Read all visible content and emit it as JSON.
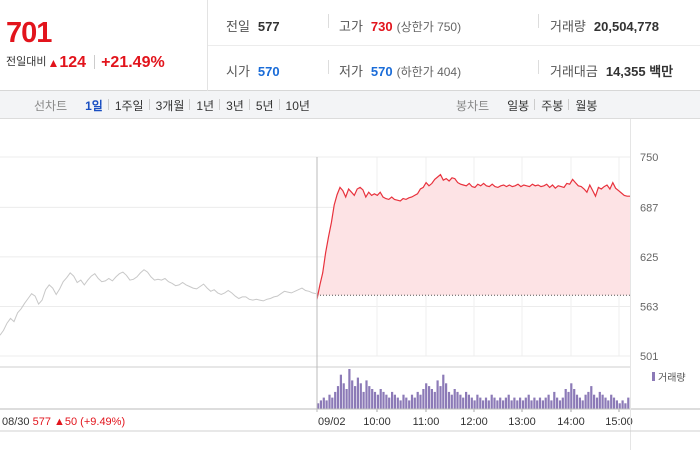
{
  "quote": {
    "price": "701",
    "change_label": "전일대비",
    "change_arrow": "▲",
    "change_amount": "124",
    "change_rate": "+21.49%"
  },
  "stats": {
    "prev_close_label": "전일",
    "prev_close": "577",
    "high_label": "고가",
    "high": "730",
    "upper_limit": "(상한가 750)",
    "volume_label": "거래량",
    "volume": "20,504,778",
    "open_label": "시가",
    "open": "570",
    "low_label": "저가",
    "low": "570",
    "lower_limit": "(하한가 404)",
    "amount_label": "거래대금",
    "amount": "14,355 백만"
  },
  "toolbar": {
    "line_label": "선차트",
    "line_options": [
      "1일",
      "1주일",
      "3개월",
      "1년",
      "3년",
      "5년",
      "10년"
    ],
    "line_selected": 0,
    "candle_label": "봉차트",
    "candle_options": [
      "일봉",
      "주봉",
      "월봉"
    ]
  },
  "chart_data": {
    "type": "line",
    "ylim": [
      501,
      750
    ],
    "y_ticks": [
      750,
      687,
      625,
      563,
      501
    ],
    "baseline": 577,
    "prev_day": {
      "date_label": "08/30",
      "close_label": "577",
      "change_label": "▲50 (+9.49%)",
      "values": [
        527,
        533,
        542,
        548,
        544,
        555,
        560,
        567,
        573,
        579,
        576,
        566,
        571,
        584,
        590,
        586,
        578,
        585,
        594,
        599,
        605,
        601,
        593,
        596,
        590,
        596,
        601,
        604,
        598,
        594,
        595,
        598,
        595,
        600,
        604,
        606,
        602,
        596,
        597,
        600,
        605,
        609,
        606,
        600,
        596,
        597,
        596,
        598,
        594,
        592,
        589,
        590,
        593,
        590,
        588,
        586,
        585,
        588,
        591,
        586,
        582,
        584,
        580,
        578,
        580,
        583,
        580,
        576,
        573,
        575,
        575,
        572,
        571,
        572,
        571,
        570,
        572,
        573,
        575,
        576,
        579,
        582,
        581,
        580,
        582,
        584,
        586,
        583,
        582,
        580,
        579
      ]
    },
    "today": {
      "date_label": "09/02",
      "x_labels": [
        "10:00",
        "11:00",
        "12:00",
        "13:00",
        "14:00",
        "15:00"
      ],
      "values": [
        572,
        590,
        605,
        630,
        650,
        668,
        690,
        703,
        712,
        708,
        700,
        710,
        706,
        702,
        710,
        712,
        709,
        700,
        706,
        702,
        704,
        702,
        706,
        700,
        698,
        697,
        700,
        697,
        696,
        695,
        698,
        697,
        699,
        700,
        702,
        704,
        710,
        712,
        718,
        714,
        717,
        722,
        725,
        728,
        721,
        723,
        720,
        724,
        723,
        718,
        716,
        715,
        714,
        717,
        713,
        712,
        716,
        714,
        717,
        714,
        713,
        716,
        713,
        712,
        714,
        715,
        713,
        715,
        713,
        714,
        716,
        713,
        715,
        714,
        713,
        716,
        714,
        715,
        713,
        714,
        716,
        712,
        715,
        711,
        714,
        713,
        712,
        717,
        716,
        722,
        718,
        714,
        713,
        710,
        706,
        715,
        708,
        701,
        712,
        710,
        713,
        715,
        710,
        718,
        711,
        708,
        705,
        702,
        701,
        701
      ],
      "volume_legend": "거래량",
      "volume": [
        2,
        3,
        4,
        3,
        5,
        4,
        6,
        8,
        12,
        9,
        7,
        14,
        10,
        8,
        11,
        9,
        6,
        10,
        8,
        7,
        6,
        5,
        7,
        6,
        5,
        4,
        6,
        5,
        4,
        3,
        5,
        4,
        3,
        5,
        4,
        6,
        5,
        7,
        9,
        8,
        7,
        6,
        10,
        8,
        12,
        9,
        6,
        5,
        7,
        6,
        5,
        4,
        6,
        5,
        4,
        3,
        5,
        4,
        3,
        4,
        3,
        5,
        4,
        3,
        4,
        3,
        4,
        5,
        3,
        4,
        3,
        4,
        3,
        4,
        5,
        3,
        4,
        3,
        4,
        3,
        4,
        5,
        3,
        6,
        4,
        3,
        4,
        7,
        6,
        9,
        7,
        5,
        4,
        3,
        5,
        6,
        8,
        5,
        4,
        6,
        5,
        4,
        3,
        5,
        4,
        3,
        2,
        3,
        2,
        4
      ]
    }
  },
  "colors": {
    "up": "#e2141c",
    "down": "#1a6cd8",
    "line_today": "#e8323d",
    "area_today": "#fde3e5",
    "line_prev": "#c8c8c8",
    "volume": "#8c7ab7"
  }
}
